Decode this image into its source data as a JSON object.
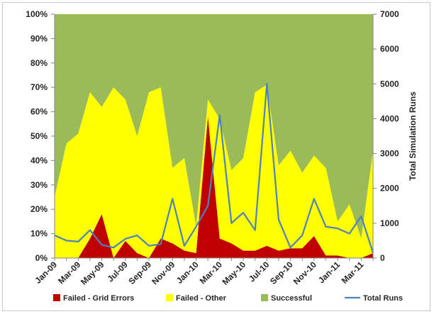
{
  "chart_data": {
    "type": "area",
    "categories": [
      "Jan-09",
      "Feb-09",
      "Mar-09",
      "Apr-09",
      "May-09",
      "Jun-09",
      "Jul-09",
      "Aug-09",
      "Sep-09",
      "Oct-09",
      "Nov-09",
      "Dec-09",
      "Jan-10",
      "Feb-10",
      "Mar-10",
      "Apr-10",
      "May-10",
      "Jun-10",
      "Jul-10",
      "Aug-10",
      "Sep-10",
      "Oct-10",
      "Nov-10",
      "Dec-10",
      "Jan-11",
      "Feb-11",
      "Mar-11",
      "Apr-11"
    ],
    "x_tick_labels": [
      "Jan-09",
      "Mar-09",
      "May-09",
      "Jul-09",
      "Sep-09",
      "Nov-09",
      "Jan-10",
      "Mar-10",
      "May-10",
      "Jul-10",
      "Sep-10",
      "Nov-10",
      "Jan-11",
      "Mar-11"
    ],
    "x_tick_every": 2,
    "stacked_percent_series": [
      {
        "name": "Failed - Grid Errors",
        "color": "#c00000",
        "values": [
          0,
          0,
          0,
          8,
          18,
          0,
          7,
          2,
          0,
          8,
          6,
          3,
          2,
          58,
          8,
          6,
          3,
          3,
          5,
          3,
          4,
          4,
          9,
          1,
          1,
          0,
          0,
          2
        ]
      },
      {
        "name": "Failed - Other",
        "color": "#ffff00",
        "values": [
          25,
          47,
          51,
          60,
          44,
          70,
          58,
          48,
          68,
          62,
          31,
          38,
          11,
          7,
          49,
          30,
          38,
          65,
          66,
          35,
          40,
          31,
          33,
          36,
          14,
          22,
          8,
          42
        ]
      },
      {
        "name": "Successful",
        "color": "#9bbb59",
        "values": [
          75,
          53,
          49,
          32,
          38,
          30,
          35,
          50,
          32,
          30,
          63,
          59,
          87,
          35,
          43,
          64,
          59,
          32,
          29,
          62,
          56,
          65,
          58,
          63,
          85,
          78,
          92,
          56
        ]
      }
    ],
    "line_series": {
      "name": "Total Runs",
      "color": "#4f81bd",
      "axis": "right",
      "values": [
        650,
        500,
        470,
        800,
        380,
        300,
        550,
        650,
        350,
        400,
        1700,
        350,
        900,
        1500,
        4100,
        1000,
        1300,
        800,
        5000,
        1100,
        300,
        650,
        1700,
        900,
        850,
        700,
        1200,
        150
      ]
    },
    "y_left": {
      "ylim": [
        0,
        100
      ],
      "ticks": [
        "0%",
        "10%",
        "20%",
        "30%",
        "40%",
        "50%",
        "60%",
        "70%",
        "80%",
        "90%",
        "100%"
      ]
    },
    "y_right": {
      "label": "Total Simulation Runs",
      "ylim": [
        0,
        7000
      ],
      "ticks": [
        "0",
        "1000",
        "2000",
        "3000",
        "4000",
        "5000",
        "6000",
        "7000"
      ]
    },
    "legend": {
      "position": "bottom",
      "items": [
        {
          "label": "Failed - Grid Errors",
          "color": "#c00000",
          "kind": "box"
        },
        {
          "label": "Failed - Other",
          "color": "#ffff00",
          "kind": "box"
        },
        {
          "label": "Successful",
          "color": "#9bbb59",
          "kind": "box"
        },
        {
          "label": "Total Runs",
          "color": "#4f81bd",
          "kind": "line"
        }
      ]
    },
    "grid": false
  }
}
